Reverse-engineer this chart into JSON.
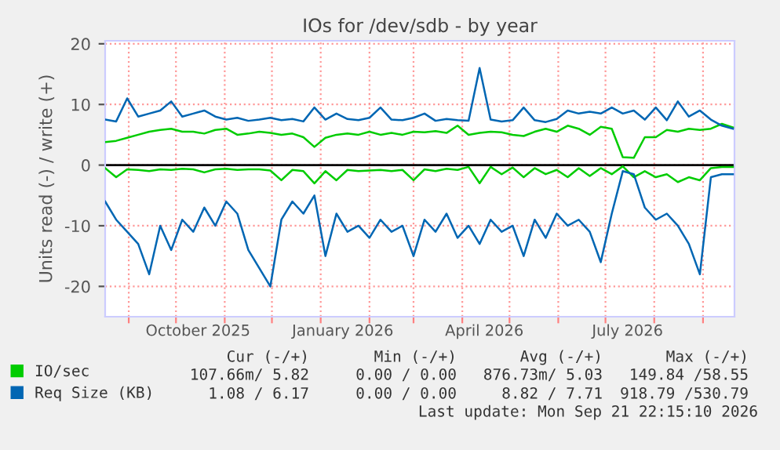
{
  "chart_data": {
    "type": "line",
    "title": "IOs for /dev/sdb - by year",
    "ylabel": "Units read (-) / write (+)",
    "x": [
      "2025-08-17",
      "2025-08-24",
      "2025-08-31",
      "2025-09-07",
      "2025-09-14",
      "2025-09-21",
      "2025-09-28",
      "2025-10-05",
      "2025-10-12",
      "2025-10-19",
      "2025-10-26",
      "2025-11-02",
      "2025-11-09",
      "2025-11-16",
      "2025-11-23",
      "2025-11-30",
      "2025-12-07",
      "2025-12-14",
      "2025-12-21",
      "2025-12-28",
      "2026-01-04",
      "2026-01-11",
      "2026-01-18",
      "2026-01-25",
      "2026-02-01",
      "2026-02-08",
      "2026-02-15",
      "2026-02-22",
      "2026-03-01",
      "2026-03-08",
      "2026-03-15",
      "2026-03-22",
      "2026-03-29",
      "2026-04-05",
      "2026-04-12",
      "2026-04-19",
      "2026-04-26",
      "2026-05-03",
      "2026-05-10",
      "2026-05-17",
      "2026-05-24",
      "2026-05-31",
      "2026-06-07",
      "2026-06-14",
      "2026-06-21",
      "2026-06-28",
      "2026-07-05",
      "2026-07-12",
      "2026-07-19",
      "2026-07-26",
      "2026-08-02",
      "2026-08-09",
      "2026-08-16",
      "2026-08-23",
      "2026-08-30",
      "2026-09-06",
      "2026-09-13",
      "2026-09-20"
    ],
    "series": [
      {
        "name": "IO/sec",
        "color": "#00cc00",
        "values": [
          3.8,
          4,
          4.5,
          5,
          5.5,
          5.8,
          6,
          5.5,
          5.5,
          5.2,
          5.8,
          6,
          5,
          5.2,
          5.5,
          5.3,
          5,
          5.2,
          4.6,
          3,
          4.5,
          5,
          5.2,
          5,
          5.5,
          5,
          5.3,
          5,
          5.5,
          5.4,
          5.6,
          5.3,
          6.5,
          5,
          5.3,
          5.5,
          5.4,
          5,
          4.8,
          5.5,
          6,
          5.5,
          6.5,
          6,
          5,
          6.3,
          6,
          1.3,
          1.2,
          4.6,
          4.6,
          5.8,
          5.5,
          6,
          5.8,
          6,
          6.8,
          6.2
        ]
      },
      {
        "color": "#00cc00",
        "values": [
          -0.5,
          -2,
          -0.7,
          -0.8,
          -1,
          -0.7,
          -0.8,
          -0.6,
          -0.7,
          -1.2,
          -0.7,
          -0.6,
          -0.8,
          -0.7,
          -0.7,
          -0.9,
          -2.5,
          -0.8,
          -1,
          -3,
          -1,
          -2.5,
          -0.8,
          -1,
          -0.9,
          -0.8,
          -1,
          -0.8,
          -2.5,
          -0.7,
          -1,
          -0.6,
          -0.8,
          -0.3,
          -3,
          -0.3,
          -1.5,
          -0.4,
          -2,
          -0.5,
          -1.5,
          -0.8,
          -2,
          -0.5,
          -1.8,
          -0.5,
          -1.5,
          -0.2,
          -2,
          -1,
          -2,
          -1.5,
          -2.8,
          -2,
          -2.5,
          -0.5,
          -0.3,
          -0.3
        ]
      },
      {
        "name": "Req Size (KB)",
        "color": "#0066b3",
        "values": [
          7.5,
          7.2,
          11,
          8,
          8.5,
          9,
          10.5,
          8,
          8.5,
          9,
          8,
          7.5,
          7.8,
          7.3,
          7.5,
          7.8,
          7.4,
          7.6,
          7.2,
          9.5,
          7.5,
          8.5,
          7.6,
          7.4,
          7.8,
          9.5,
          7.5,
          7.4,
          7.8,
          8.5,
          7.3,
          7.6,
          7.4,
          7.3,
          16,
          7.5,
          7.2,
          7.4,
          9.5,
          7.4,
          7.1,
          7.6,
          9,
          8.5,
          8.8,
          8.5,
          9.5,
          8.5,
          9,
          7.5,
          9.5,
          7.4,
          10.5,
          8,
          9,
          7.5,
          6.5,
          6
        ]
      },
      {
        "color": "#0066b3",
        "values": [
          -6,
          -9,
          -11,
          -13,
          -18,
          -10,
          -14,
          -9,
          -11,
          -7,
          -10,
          -6,
          -8,
          -14,
          -17,
          -20,
          -9,
          -6,
          -8,
          -5,
          -15,
          -8,
          -11,
          -10,
          -12,
          -9,
          -11,
          -10,
          -15,
          -9,
          -11,
          -8,
          -12,
          -10,
          -13,
          -9,
          -11,
          -10,
          -15,
          -9,
          -12,
          -8,
          -10,
          -9,
          -11,
          -16,
          -8,
          -1,
          -1.5,
          -7,
          -9,
          -8,
          -10,
          -13,
          -18,
          -2,
          -1.5,
          -1.5
        ]
      }
    ],
    "xlim": [
      "2025-08-17",
      "2026-09-21"
    ],
    "xticks": [
      {
        "value": "2025-09-01",
        "label": null
      },
      {
        "value": "2025-10-01",
        "label": null
      },
      {
        "value": "2025-11-01",
        "label": null
      },
      {
        "value": "2025-12-01",
        "label": null
      },
      {
        "value": "2026-01-01",
        "label": null
      },
      {
        "value": "2026-02-01",
        "label": null
      },
      {
        "value": "2026-03-01",
        "label": null
      },
      {
        "value": "2026-04-01",
        "label": null
      },
      {
        "value": "2026-05-01",
        "label": null
      },
      {
        "value": "2026-06-01",
        "label": null
      },
      {
        "value": "2026-07-01",
        "label": null
      },
      {
        "value": "2026-08-01",
        "label": null
      },
      {
        "value": "2026-09-01",
        "label": null
      },
      {
        "value": "2025-10-15",
        "label": "October 2025"
      },
      {
        "value": "2026-01-15",
        "label": "January 2026"
      },
      {
        "value": "2026-04-15",
        "label": "April 2026"
      },
      {
        "value": "2026-07-15",
        "label": "July 2026"
      }
    ],
    "ylim": [
      -25,
      20.5
    ],
    "yticks": [
      -20,
      -10,
      0,
      10,
      20
    ],
    "ref_lines": [
      {
        "axis": "y",
        "value": 0,
        "color": "#000000"
      }
    ],
    "grid": true,
    "legend": "bottom left",
    "marker": "none",
    "line_style": "solid",
    "annotations": [
      "Cur (-/+)",
      "Min (-/+)",
      "Avg (-/+)",
      "Max (-/+)",
      "107.66m/ 5.82",
      "0.00 / 0.00",
      "876.73m/ 5.03",
      "149.84 /58.55",
      "1.08 / 6.17",
      "0.00 / 0.00",
      "8.82 / 7.71",
      "918.79 /530.79",
      "Last update: Mon Sep 21 22:15:10 2026"
    ]
  }
}
